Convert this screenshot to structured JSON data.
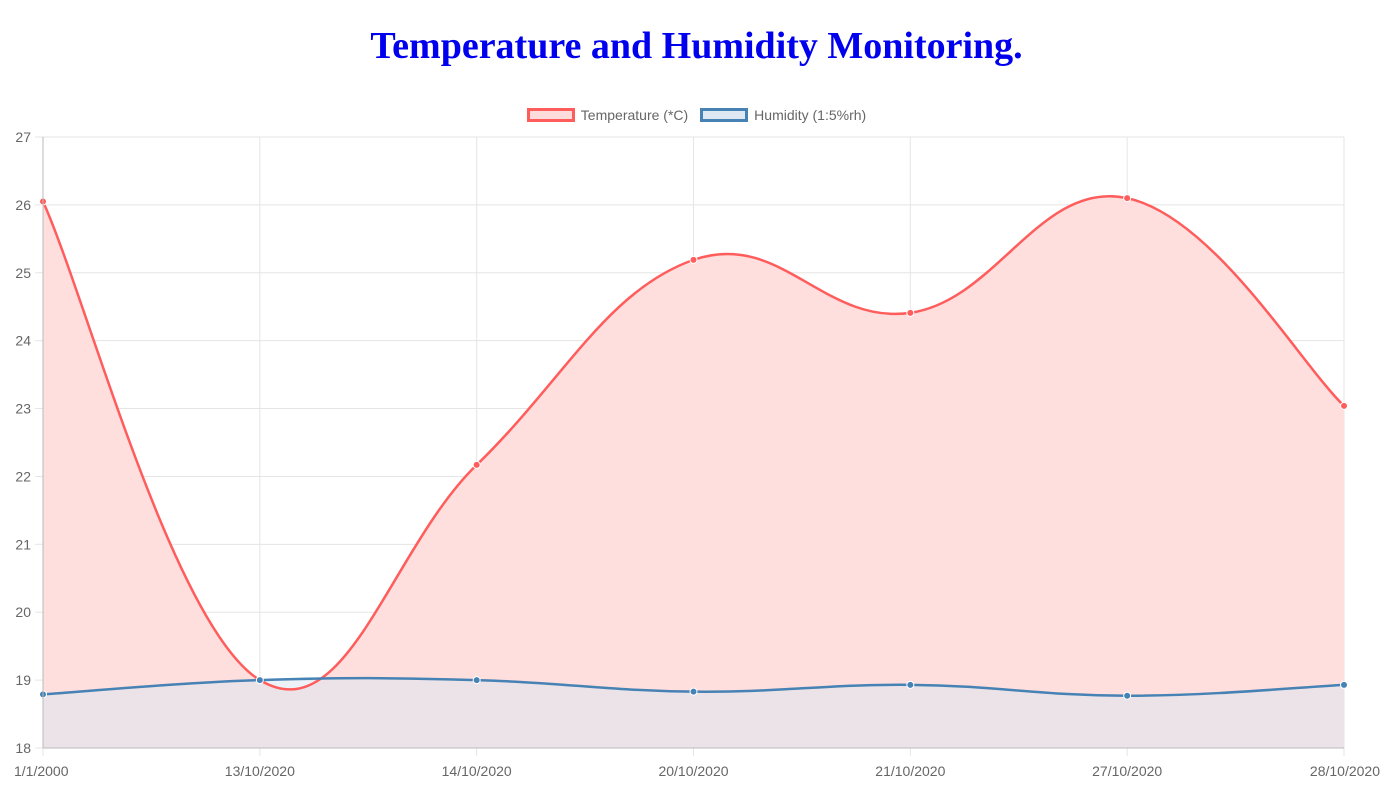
{
  "chart_data": {
    "type": "line",
    "title": "Temperature and Humidity Monitoring.",
    "categories": [
      "1/1/2000",
      "13/10/2020",
      "14/10/2020",
      "20/10/2020",
      "21/10/2020",
      "27/10/2020",
      "28/10/2020"
    ],
    "ylim": [
      18,
      27
    ],
    "yticks": [
      18,
      19,
      20,
      21,
      22,
      23,
      24,
      25,
      26,
      27
    ],
    "grid": true,
    "legend_position": "top",
    "series": [
      {
        "name": "Temperature (*C)",
        "values": [
          26.05,
          19.0,
          22.17,
          25.19,
          24.41,
          26.1,
          23.04
        ],
        "color": "#ff5c5c",
        "fill": "#ffdcdc"
      },
      {
        "name": "Humidity (1:5%rh)",
        "values": [
          18.79,
          19.0,
          19.0,
          18.83,
          18.93,
          18.77,
          18.93
        ],
        "color": "#4682b4",
        "fill": "#dde8f2"
      }
    ]
  }
}
